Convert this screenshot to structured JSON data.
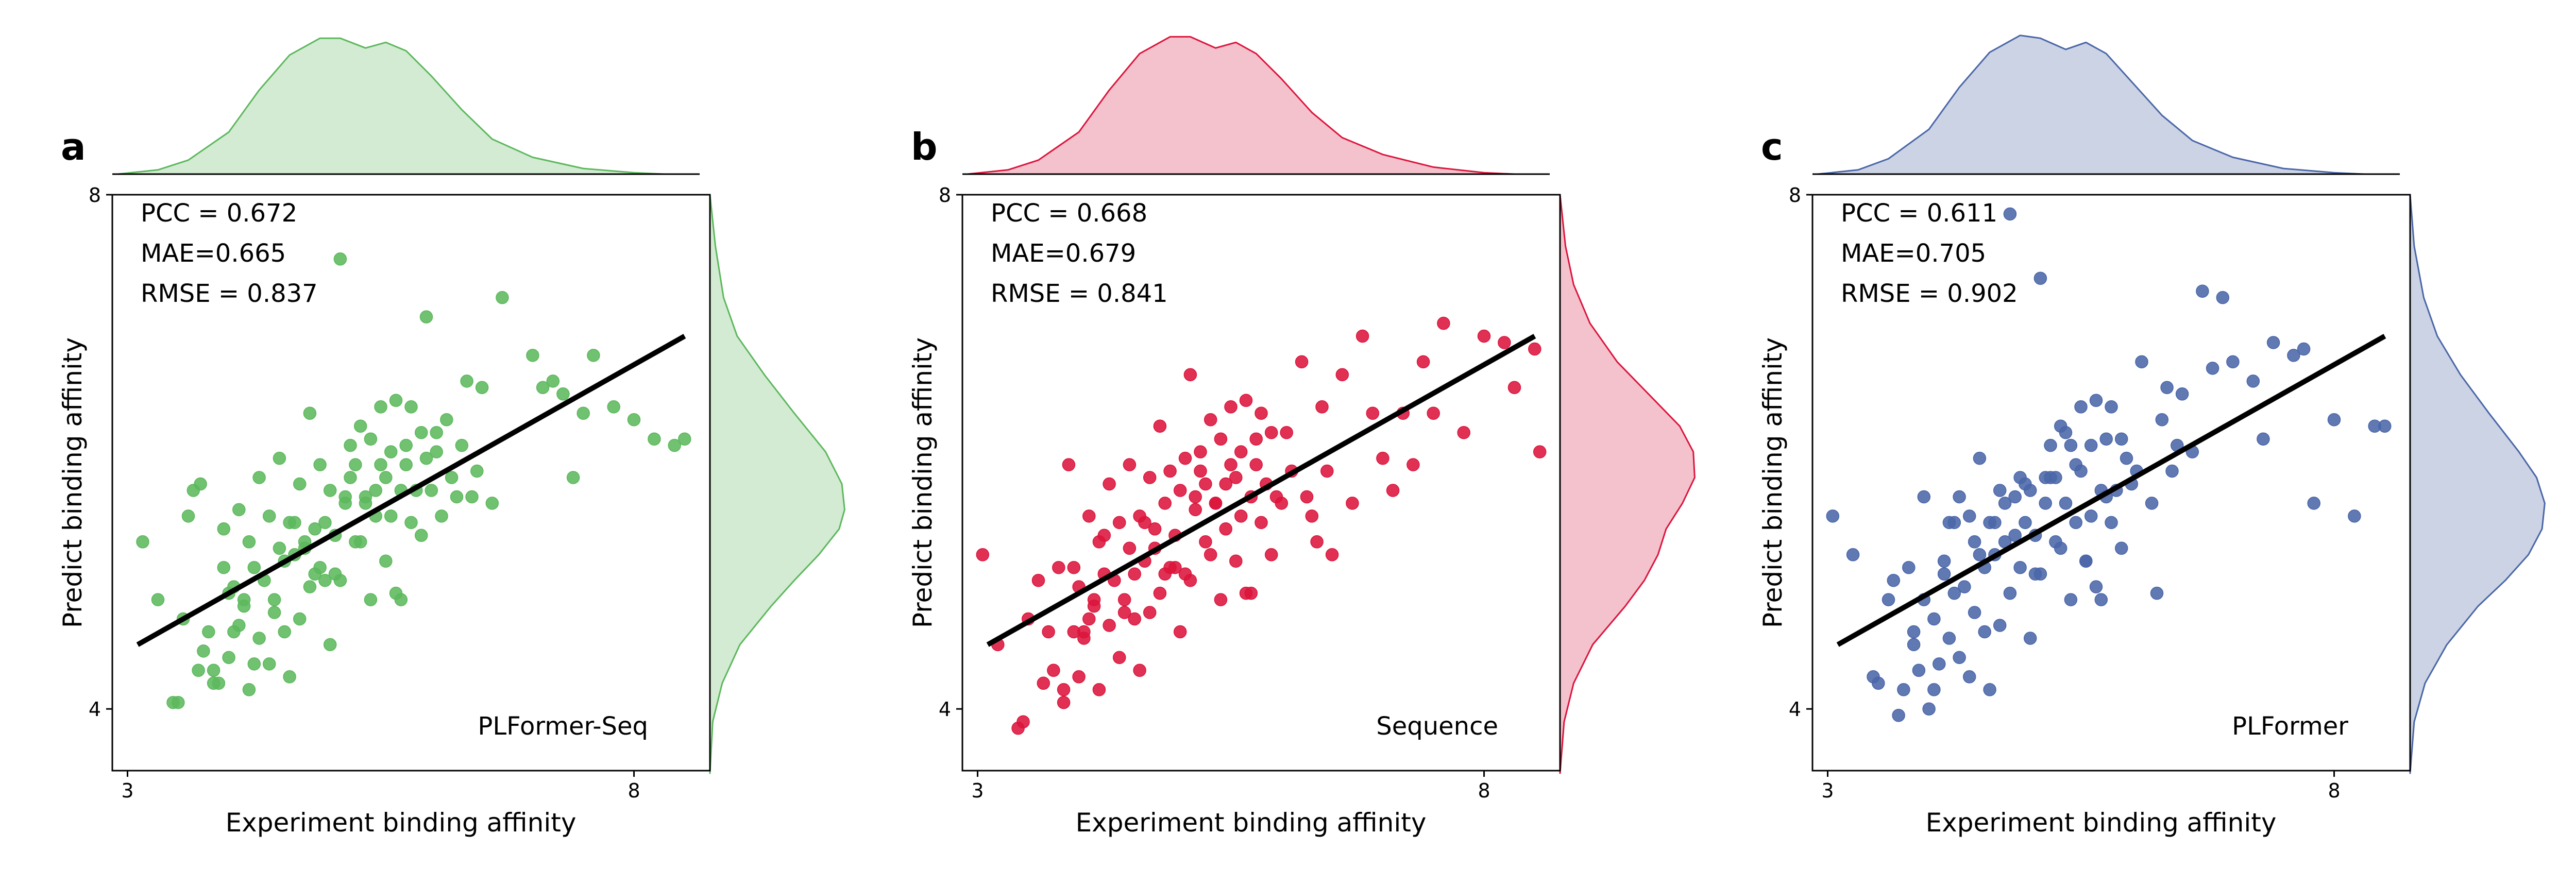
{
  "chart_data": [
    {
      "type": "scatter",
      "panel_label": "a",
      "model_label": "PLFormer-Seq",
      "xlabel": "Experiment binding affinity",
      "ylabel": "Predict binding affinity",
      "xlim": [
        2.85,
        8.75
      ],
      "ylim": [
        3.52,
        8.0
      ],
      "xticks": [
        "3",
        "8"
      ],
      "yticks": [
        "4",
        "8"
      ],
      "color": "#5cb85c",
      "fill_color": "#d3ebd3",
      "metrics": [
        "PCC = 0.672",
        "MAE=0.665",
        "RMSE = 0.837"
      ],
      "fit_line": {
        "x": [
          3.1,
          8.5
        ],
        "y": [
          4.5,
          6.9
        ]
      },
      "x_density": [
        [
          2.9,
          0.0
        ],
        [
          3.3,
          0.03
        ],
        [
          3.6,
          0.1
        ],
        [
          4.0,
          0.3
        ],
        [
          4.3,
          0.6
        ],
        [
          4.6,
          0.85
        ],
        [
          4.9,
          0.97
        ],
        [
          5.1,
          0.97
        ],
        [
          5.35,
          0.9
        ],
        [
          5.55,
          0.94
        ],
        [
          5.75,
          0.88
        ],
        [
          6.0,
          0.7
        ],
        [
          6.3,
          0.46
        ],
        [
          6.6,
          0.25
        ],
        [
          7.0,
          0.12
        ],
        [
          7.5,
          0.04
        ],
        [
          8.0,
          0.01
        ],
        [
          8.3,
          0.0
        ]
      ],
      "y_density": [
        [
          3.5,
          0.0
        ],
        [
          3.9,
          0.02
        ],
        [
          4.2,
          0.09
        ],
        [
          4.5,
          0.22
        ],
        [
          4.8,
          0.45
        ],
        [
          5.0,
          0.62
        ],
        [
          5.2,
          0.8
        ],
        [
          5.4,
          0.95
        ],
        [
          5.55,
          0.99
        ],
        [
          5.75,
          0.97
        ],
        [
          6.0,
          0.85
        ],
        [
          6.3,
          0.62
        ],
        [
          6.6,
          0.4
        ],
        [
          6.9,
          0.2
        ],
        [
          7.2,
          0.1
        ],
        [
          7.6,
          0.04
        ],
        [
          8.0,
          0.0
        ]
      ],
      "x": [
        3.15,
        3.3,
        3.45,
        3.5,
        3.55,
        3.6,
        3.7,
        3.72,
        3.75,
        3.8,
        3.85,
        3.9,
        3.95,
        4.0,
        4.0,
        4.05,
        4.1,
        4.1,
        4.15,
        4.2,
        4.2,
        4.25,
        4.3,
        4.3,
        4.35,
        4.4,
        4.4,
        4.45,
        4.5,
        4.5,
        4.55,
        4.6,
        4.6,
        4.65,
        4.7,
        4.7,
        4.75,
        4.8,
        4.8,
        4.85,
        4.9,
        4.9,
        4.95,
        5.0,
        5.0,
        5.05,
        5.1,
        5.1,
        5.15,
        5.2,
        5.2,
        5.25,
        5.3,
        5.3,
        5.35,
        5.4,
        5.4,
        5.45,
        5.5,
        5.5,
        5.55,
        5.6,
        5.6,
        5.65,
        5.7,
        5.7,
        5.75,
        5.8,
        5.8,
        5.85,
        5.9,
        5.9,
        5.95,
        6.0,
        6.05,
        6.1,
        6.15,
        6.2,
        6.3,
        6.4,
        6.5,
        6.6,
        6.7,
        7.0,
        7.1,
        7.2,
        7.3,
        7.4,
        7.5,
        7.6,
        7.8,
        8.0,
        8.2,
        8.4,
        8.5,
        3.65,
        4.25,
        4.55,
        4.95,
        5.45,
        5.75,
        6.25,
        4.15,
        4.85,
        5.15,
        5.55,
        3.95,
        4.45,
        4.75,
        5.35,
        6.05,
        6.45,
        5.95,
        6.35,
        4.65,
        5.25,
        4.05,
        3.85,
        5.05,
        5.65
      ],
      "y": [
        5.3,
        4.85,
        4.05,
        4.05,
        4.7,
        5.5,
        4.3,
        5.75,
        4.45,
        4.6,
        4.3,
        4.2,
        5.4,
        4.9,
        4.4,
        4.95,
        4.65,
        5.55,
        4.85,
        5.3,
        4.15,
        5.1,
        4.55,
        5.8,
        5.0,
        4.35,
        5.5,
        4.85,
        5.25,
        5.95,
        4.6,
        5.45,
        4.25,
        5.2,
        5.75,
        4.7,
        5.3,
        6.3,
        4.95,
        5.4,
        5.1,
        5.9,
        5.45,
        5.7,
        4.5,
        5.35,
        7.5,
        5.0,
        5.6,
        5.8,
        6.05,
        5.9,
        6.2,
        5.3,
        5.65,
        4.85,
        6.1,
        5.5,
        5.9,
        6.35,
        5.15,
        6.0,
        5.5,
        6.4,
        5.7,
        4.85,
        6.05,
        6.35,
        5.45,
        5.7,
        5.35,
        6.15,
        5.95,
        5.7,
        6.0,
        5.5,
        6.25,
        5.8,
        6.05,
        5.65,
        6.5,
        5.6,
        7.2,
        6.75,
        6.5,
        6.55,
        6.45,
        5.8,
        6.3,
        6.75,
        6.35,
        6.25,
        6.1,
        6.05,
        6.1,
        5.7,
        4.35,
        5.15,
        5.0,
        5.7,
        5.9,
        5.65,
        4.8,
        5.05,
        5.65,
        5.8,
        5.1,
        4.75,
        5.25,
        5.6,
        6.15,
        5.85,
        7.05,
        6.55,
        5.45,
        5.3,
        4.6,
        4.2,
        5.05,
        4.9
      ]
    },
    {
      "type": "scatter",
      "panel_label": "b",
      "model_label": "Sequence",
      "xlabel": "Experiment binding affinity",
      "ylabel": "Predict binding affinity",
      "xlim": [
        2.85,
        8.75
      ],
      "ylim": [
        3.52,
        8.0
      ],
      "xticks": [
        "3",
        "8"
      ],
      "yticks": [
        "4",
        "8"
      ],
      "color": "#dc143c",
      "fill_color": "#f4c2cd",
      "metrics": [
        "PCC = 0.668",
        "MAE=0.679",
        "RMSE = 0.841"
      ],
      "fit_line": {
        "x": [
          3.1,
          8.5
        ],
        "y": [
          4.5,
          6.9
        ]
      },
      "x_density": [
        [
          2.9,
          0.0
        ],
        [
          3.3,
          0.03
        ],
        [
          3.6,
          0.1
        ],
        [
          4.0,
          0.3
        ],
        [
          4.3,
          0.6
        ],
        [
          4.6,
          0.86
        ],
        [
          4.9,
          0.98
        ],
        [
          5.1,
          0.98
        ],
        [
          5.35,
          0.9
        ],
        [
          5.55,
          0.94
        ],
        [
          5.75,
          0.86
        ],
        [
          6.0,
          0.68
        ],
        [
          6.3,
          0.44
        ],
        [
          6.6,
          0.26
        ],
        [
          7.0,
          0.14
        ],
        [
          7.5,
          0.05
        ],
        [
          8.0,
          0.01
        ],
        [
          8.3,
          0.0
        ]
      ],
      "y_density": [
        [
          3.5,
          0.0
        ],
        [
          3.9,
          0.03
        ],
        [
          4.2,
          0.1
        ],
        [
          4.5,
          0.24
        ],
        [
          4.8,
          0.48
        ],
        [
          5.0,
          0.62
        ],
        [
          5.2,
          0.72
        ],
        [
          5.4,
          0.78
        ],
        [
          5.6,
          0.9
        ],
        [
          5.8,
          0.99
        ],
        [
          6.0,
          0.98
        ],
        [
          6.2,
          0.88
        ],
        [
          6.45,
          0.65
        ],
        [
          6.7,
          0.42
        ],
        [
          7.0,
          0.22
        ],
        [
          7.3,
          0.1
        ],
        [
          7.6,
          0.04
        ],
        [
          8.0,
          0.0
        ]
      ],
      "x": [
        3.05,
        3.2,
        3.4,
        3.45,
        3.5,
        3.6,
        3.65,
        3.7,
        3.75,
        3.8,
        3.85,
        3.9,
        3.95,
        4.0,
        4.0,
        4.05,
        4.1,
        4.1,
        4.15,
        4.2,
        4.2,
        4.25,
        4.3,
        4.3,
        4.35,
        4.4,
        4.4,
        4.45,
        4.5,
        4.5,
        4.55,
        4.6,
        4.6,
        4.65,
        4.7,
        4.7,
        4.75,
        4.8,
        4.8,
        4.85,
        4.9,
        4.9,
        4.95,
        5.0,
        5.0,
        5.05,
        5.1,
        5.1,
        5.15,
        5.2,
        5.2,
        5.25,
        5.3,
        5.3,
        5.35,
        5.4,
        5.4,
        5.45,
        5.5,
        5.5,
        5.55,
        5.6,
        5.6,
        5.65,
        5.7,
        5.7,
        5.75,
        5.8,
        5.8,
        5.85,
        5.9,
        5.9,
        6.0,
        6.1,
        6.2,
        6.3,
        6.4,
        6.5,
        6.6,
        6.7,
        6.8,
        6.9,
        7.0,
        7.1,
        7.2,
        7.3,
        7.4,
        7.5,
        7.6,
        7.8,
        8.0,
        8.2,
        8.3,
        8.5,
        8.55,
        4.25,
        4.55,
        4.95,
        5.45,
        5.75,
        6.25,
        4.15,
        4.85,
        5.15,
        5.55,
        3.95,
        4.45,
        4.75,
        5.35,
        6.05,
        6.45,
        5.95,
        6.35,
        4.65,
        5.25,
        4.05,
        3.85,
        5.05,
        5.65
      ],
      "y": [
        5.2,
        4.5,
        3.85,
        3.9,
        4.7,
        5.0,
        4.2,
        4.6,
        4.3,
        5.1,
        4.05,
        5.9,
        4.6,
        4.95,
        4.25,
        4.55,
        5.5,
        4.7,
        4.85,
        5.3,
        4.15,
        5.05,
        4.65,
        5.75,
        5.0,
        4.4,
        5.45,
        4.85,
        5.25,
        5.9,
        4.7,
        5.5,
        4.3,
        5.15,
        5.8,
        4.75,
        5.4,
        6.2,
        4.9,
        5.6,
        5.1,
        5.85,
        5.35,
        5.7,
        4.6,
        5.95,
        6.6,
        5.0,
        5.55,
        5.85,
        6.0,
        5.75,
        6.25,
        5.2,
        5.6,
        4.85,
        6.1,
        5.4,
        5.9,
        6.35,
        5.15,
        6.0,
        5.5,
        6.4,
        5.65,
        4.9,
        6.1,
        6.3,
        5.45,
        5.75,
        5.2,
        6.15,
        5.6,
        5.85,
        6.7,
        5.5,
        6.35,
        5.2,
        6.6,
        5.6,
        6.9,
        6.3,
        5.95,
        5.7,
        6.3,
        5.9,
        6.7,
        6.3,
        7.0,
        6.15,
        6.9,
        6.85,
        6.5,
        6.8,
        6.0,
        5.35,
        5.05,
        5.1,
        5.75,
        5.9,
        5.65,
        4.8,
        5.05,
        5.65,
        5.8,
        5.1,
        4.75,
        5.25,
        5.6,
        6.15,
        5.85,
        5.65,
        5.3,
        5.45,
        5.3,
        4.6,
        4.15,
        5.05,
        4.9
      ]
    },
    {
      "type": "scatter",
      "panel_label": "c",
      "model_label": "PLFormer",
      "xlabel": "Experiment binding affinity",
      "ylabel": "Predict binding affinity",
      "xlim": [
        2.85,
        8.75
      ],
      "ylim": [
        3.52,
        8.0
      ],
      "xticks": [
        "3",
        "8"
      ],
      "yticks": [
        "4",
        "8"
      ],
      "color": "#4a66a8",
      "fill_color": "#cbd3e4",
      "metrics": [
        "PCC = 0.611",
        "MAE=0.705",
        "RMSE = 0.902"
      ],
      "fit_line": {
        "x": [
          3.1,
          8.5
        ],
        "y": [
          4.5,
          6.9
        ]
      },
      "x_density": [
        [
          2.9,
          0.0
        ],
        [
          3.3,
          0.03
        ],
        [
          3.6,
          0.11
        ],
        [
          4.0,
          0.32
        ],
        [
          4.3,
          0.62
        ],
        [
          4.6,
          0.87
        ],
        [
          4.9,
          0.99
        ],
        [
          5.1,
          0.97
        ],
        [
          5.35,
          0.89
        ],
        [
          5.55,
          0.94
        ],
        [
          5.75,
          0.86
        ],
        [
          6.0,
          0.66
        ],
        [
          6.3,
          0.42
        ],
        [
          6.6,
          0.24
        ],
        [
          7.0,
          0.12
        ],
        [
          7.5,
          0.04
        ],
        [
          8.0,
          0.01
        ],
        [
          8.3,
          0.0
        ]
      ],
      "y_density": [
        [
          3.5,
          0.0
        ],
        [
          3.9,
          0.03
        ],
        [
          4.2,
          0.11
        ],
        [
          4.5,
          0.27
        ],
        [
          4.8,
          0.5
        ],
        [
          5.0,
          0.7
        ],
        [
          5.2,
          0.87
        ],
        [
          5.4,
          0.97
        ],
        [
          5.6,
          0.99
        ],
        [
          5.8,
          0.93
        ],
        [
          6.0,
          0.8
        ],
        [
          6.3,
          0.58
        ],
        [
          6.6,
          0.37
        ],
        [
          6.9,
          0.2
        ],
        [
          7.2,
          0.1
        ],
        [
          7.6,
          0.03
        ],
        [
          8.0,
          0.0
        ]
      ],
      "x": [
        3.05,
        3.25,
        3.45,
        3.5,
        3.6,
        3.7,
        3.75,
        3.8,
        3.85,
        3.9,
        3.95,
        4.0,
        4.05,
        4.1,
        4.15,
        4.2,
        4.2,
        4.25,
        4.3,
        4.3,
        4.35,
        4.4,
        4.4,
        4.45,
        4.5,
        4.5,
        4.55,
        4.6,
        4.6,
        4.65,
        4.7,
        4.7,
        4.75,
        4.8,
        4.8,
        4.85,
        4.9,
        4.9,
        4.95,
        5.0,
        5.0,
        5.05,
        5.1,
        5.1,
        5.15,
        5.2,
        5.2,
        5.25,
        5.3,
        5.3,
        5.35,
        5.4,
        5.4,
        5.45,
        5.5,
        5.5,
        5.55,
        5.6,
        5.6,
        5.65,
        5.7,
        5.7,
        5.75,
        5.8,
        5.8,
        5.85,
        5.9,
        5.9,
        6.0,
        6.1,
        6.2,
        6.3,
        6.4,
        6.5,
        6.6,
        6.7,
        6.8,
        6.9,
        7.0,
        7.2,
        7.3,
        7.4,
        7.6,
        7.7,
        7.8,
        8.0,
        8.2,
        8.4,
        8.5,
        3.65,
        4.25,
        4.55,
        4.95,
        5.45,
        5.75,
        6.25,
        4.15,
        4.85,
        5.15,
        5.55,
        3.95,
        4.45,
        4.75,
        5.35,
        6.05,
        6.45,
        5.95,
        6.35,
        4.65,
        5.25,
        3.85,
        5.05,
        5.65,
        4.05
      ],
      "y": [
        5.5,
        5.2,
        4.25,
        4.2,
        4.85,
        3.95,
        4.15,
        5.1,
        4.6,
        4.3,
        5.65,
        4.0,
        4.7,
        4.35,
        5.15,
        4.55,
        5.45,
        4.9,
        4.4,
        5.65,
        4.95,
        4.25,
        5.5,
        4.75,
        5.2,
        5.95,
        4.6,
        5.45,
        4.15,
        5.2,
        5.7,
        4.65,
        5.3,
        7.85,
        4.9,
        5.35,
        5.1,
        5.8,
        5.45,
        5.7,
        4.55,
        5.35,
        7.35,
        5.05,
        5.6,
        5.8,
        6.05,
        5.8,
        6.2,
        5.25,
        5.6,
        4.85,
        6.05,
        5.45,
        5.85,
        6.35,
        5.15,
        6.05,
        5.5,
        6.4,
        5.7,
        4.85,
        6.1,
        6.35,
        5.45,
        5.7,
        5.25,
        6.1,
        5.75,
        6.7,
        5.6,
        6.25,
        5.85,
        6.45,
        6.0,
        7.25,
        6.65,
        7.2,
        6.7,
        6.55,
        6.1,
        6.85,
        6.75,
        6.8,
        5.6,
        6.25,
        5.5,
        6.2,
        6.2,
        5.0,
        5.45,
        5.1,
        5.75,
        5.9,
        5.65,
        4.9,
        5.05,
        5.65,
        5.8,
        5.15,
        4.85,
        5.3,
        5.6,
        6.15,
        5.85,
        6.05,
        5.95,
        6.5,
        5.45,
        5.3,
        4.5,
        5.05,
        4.95,
        4.15
      ]
    }
  ]
}
